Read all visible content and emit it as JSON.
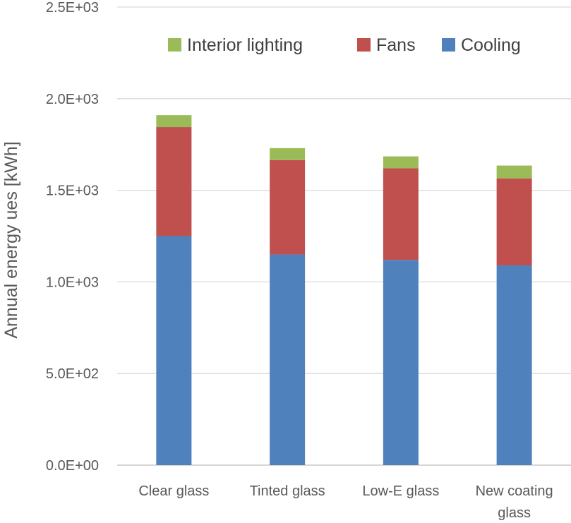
{
  "chart_data": {
    "type": "bar",
    "stacked": true,
    "title": "",
    "xlabel": "",
    "ylabel": "Annual energy ues [kWh]",
    "ylim": [
      0,
      2500
    ],
    "yticks": [
      {
        "value": 0,
        "label": "0.0E+00"
      },
      {
        "value": 500,
        "label": "5.0E+02"
      },
      {
        "value": 1000,
        "label": "1.0E+03"
      },
      {
        "value": 1500,
        "label": "1.5E+03"
      },
      {
        "value": 2000,
        "label": "2.0E+03"
      },
      {
        "value": 2500,
        "label": "2.5E+03"
      }
    ],
    "categories": [
      [
        "Clear glass"
      ],
      [
        "Tinted glass"
      ],
      [
        "Low-E glass"
      ],
      [
        "New coating",
        "glass"
      ]
    ],
    "series": [
      {
        "name": "Cooling",
        "color": "#4F81BD",
        "values": [
          1250,
          1150,
          1120,
          1090
        ]
      },
      {
        "name": "Fans",
        "color": "#C0504D",
        "values": [
          595,
          515,
          500,
          475
        ]
      },
      {
        "name": "Interior lighting",
        "color": "#9BBB59",
        "values": [
          65,
          65,
          65,
          70
        ]
      }
    ],
    "legend_order": [
      "Interior lighting",
      "Fans",
      "Cooling"
    ],
    "legend_position": "top-right",
    "grid": true
  }
}
